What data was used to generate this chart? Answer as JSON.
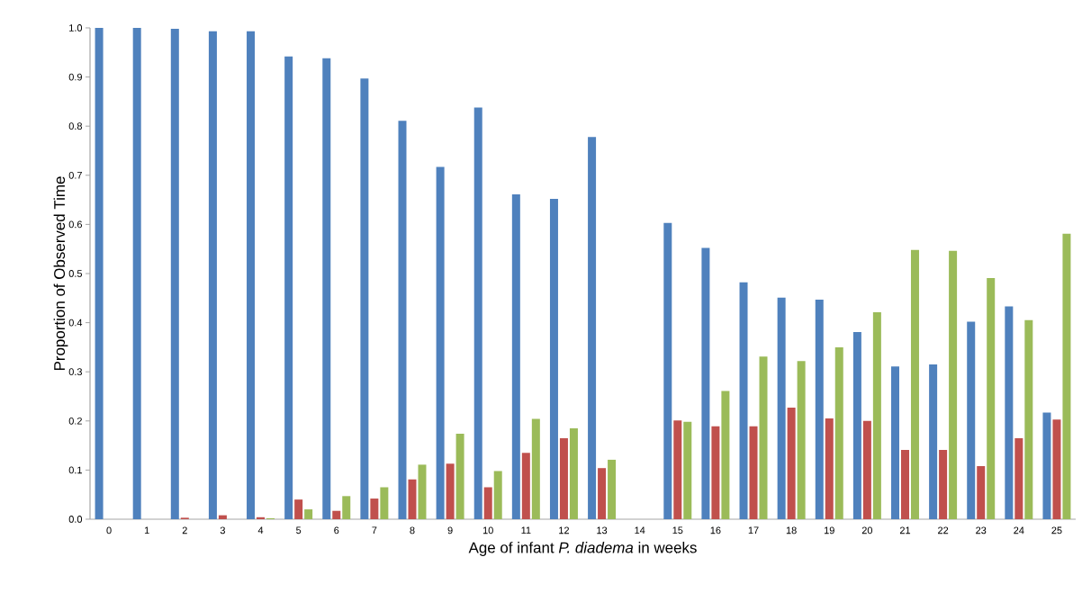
{
  "chart_data": {
    "type": "bar",
    "xlabel": "Age of infant *P. diadema* in weeks",
    "ylabel": "Proportion of Observed Time",
    "categories": [
      "0",
      "1",
      "2",
      "3",
      "4",
      "5",
      "6",
      "7",
      "8",
      "9",
      "10",
      "11",
      "12",
      "13",
      "14",
      "15",
      "16",
      "17",
      "18",
      "19",
      "20",
      "21",
      "22",
      "23",
      "24",
      "25"
    ],
    "series": [
      {
        "color": "#4f81bd",
        "values": [
          1.0,
          1.0,
          0.998,
          0.993,
          0.993,
          0.942,
          0.938,
          0.897,
          0.811,
          0.717,
          0.838,
          0.661,
          0.652,
          0.778,
          null,
          0.603,
          0.552,
          0.482,
          0.451,
          0.447,
          0.381,
          0.311,
          0.315,
          0.402,
          0.433,
          0.217
        ]
      },
      {
        "color": "#c0504d",
        "values": [
          0,
          0,
          0.003,
          0.008,
          0.004,
          0.04,
          0.017,
          0.042,
          0.081,
          0.113,
          0.065,
          0.135,
          0.165,
          0.104,
          null,
          0.201,
          0.189,
          0.189,
          0.227,
          0.205,
          0.2,
          0.141,
          0.141,
          0.108,
          0.165,
          0.203
        ]
      },
      {
        "color": "#9bbb59",
        "values": [
          0,
          0,
          0,
          0,
          0.002,
          0.02,
          0.047,
          0.065,
          0.111,
          0.174,
          0.098,
          0.204,
          0.185,
          0.121,
          null,
          0.198,
          0.261,
          0.331,
          0.322,
          0.35,
          0.421,
          0.548,
          0.546,
          0.491,
          0.405,
          0.581
        ]
      }
    ],
    "ylim": [
      0,
      1.0
    ],
    "yticks": [
      {
        "value": 0,
        "label": "0.0"
      },
      {
        "value": 0.1,
        "label": "0.1"
      },
      {
        "value": 0.2,
        "label": "0.2"
      },
      {
        "value": 0.3,
        "label": "0.3"
      },
      {
        "value": 0.4,
        "label": "0.4"
      },
      {
        "value": 0.5,
        "label": "0.5"
      },
      {
        "value": 0.6,
        "label": "0.6"
      },
      {
        "value": 0.7,
        "label": "0.7"
      },
      {
        "value": 0.8,
        "label": "0.8"
      },
      {
        "value": 0.9,
        "label": "0.9"
      },
      {
        "value": 1.0,
        "label": "1.0"
      }
    ],
    "grid": false,
    "legend": false
  }
}
